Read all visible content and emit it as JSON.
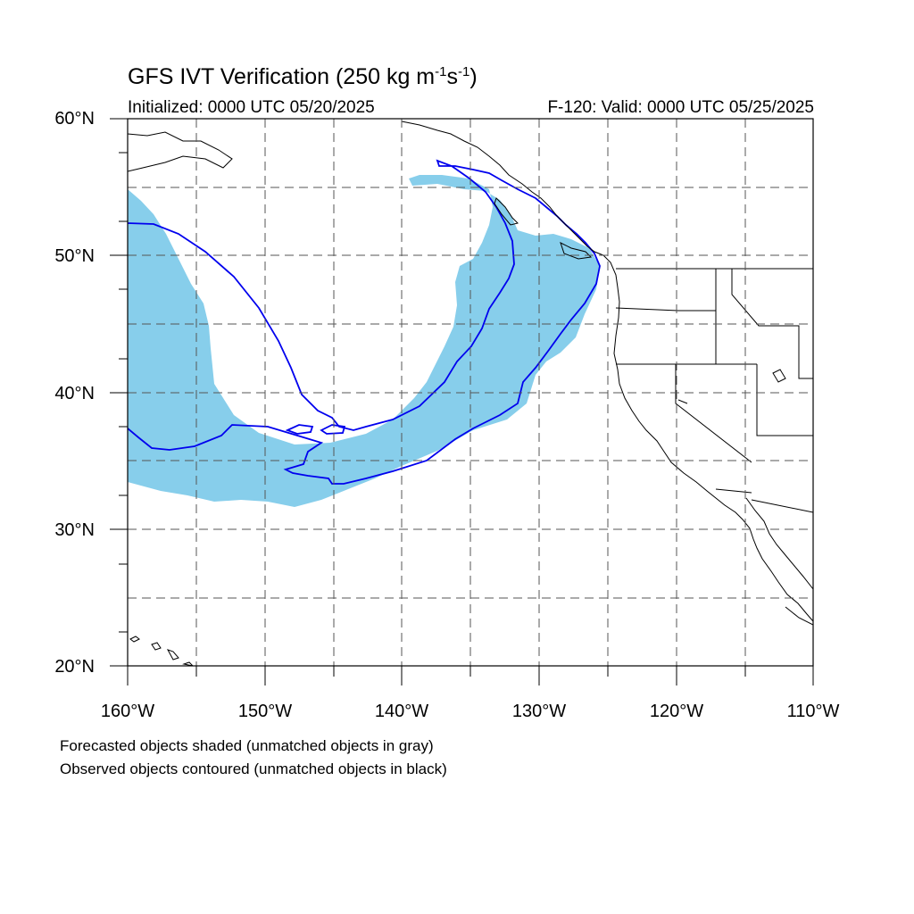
{
  "title": "GFS IVT Verification (250 kg m",
  "title_unit_parts": [
    "-1",
    "s",
    "-1",
    ")"
  ],
  "initialized": "Initialized: 0000 UTC 05/20/2025",
  "valid": "F-120: Valid: 0000 UTC 05/25/2025",
  "lat_labels": [
    "60°N",
    "50°N",
    "40°N",
    "30°N",
    "20°N"
  ],
  "lon_labels": [
    "160°W",
    "150°W",
    "140°W",
    "130°W",
    "120°W",
    "110°W"
  ],
  "footnote_forecast": "Forecasted objects shaded (unmatched objects in gray)",
  "footnote_observed": "Observed objects contoured (unmatched objects in black)",
  "colors": {
    "forecast_fill": "#87ceeb",
    "observed_contour": "#0000ee",
    "coast": "#000000",
    "grid": "#555555"
  },
  "extent": {
    "lon": [
      -160,
      -110
    ],
    "lat": [
      20,
      60
    ]
  }
}
